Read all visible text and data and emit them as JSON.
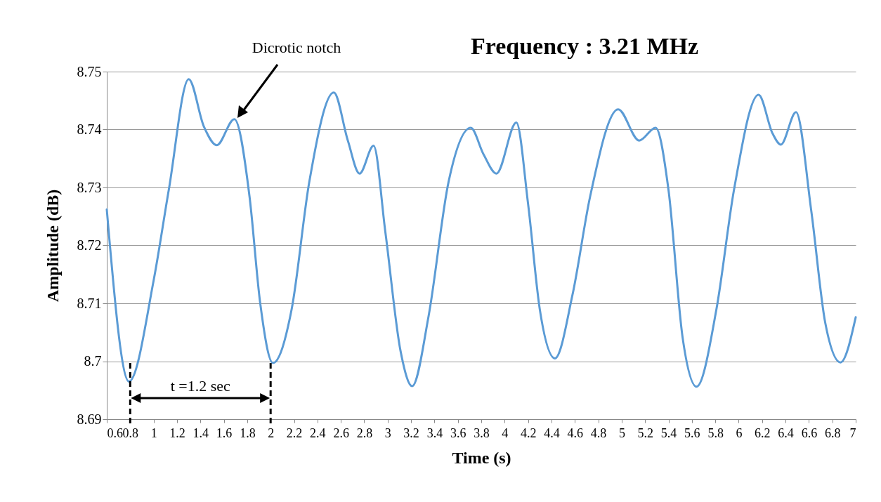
{
  "chart_data": {
    "type": "line",
    "title": "Frequency : 3.21 MHz",
    "xlabel": "Time (s)",
    "ylabel": "Amplitude (dB)",
    "x": [
      0.6,
      0.79,
      1.0,
      1.13,
      1.3,
      1.43,
      1.54,
      1.69,
      1.82,
      1.91,
      2.02,
      2.18,
      2.33,
      2.54,
      2.66,
      2.76,
      2.88,
      2.98,
      3.11,
      3.21,
      3.35,
      3.52,
      3.71,
      3.82,
      3.93,
      4.1,
      4.2,
      4.3,
      4.43,
      4.58,
      4.73,
      4.97,
      5.15,
      5.29,
      5.4,
      5.52,
      5.64,
      5.81,
      5.96,
      6.17,
      6.29,
      6.36,
      6.49,
      6.62,
      6.74,
      6.87,
      7.0
    ],
    "series": [
      {
        "color": "#5b9bd5",
        "values": [
          8.7262,
          8.6965,
          8.7139,
          8.7296,
          8.7487,
          8.7405,
          8.7373,
          8.7418,
          8.7284,
          8.7102,
          8.6997,
          8.709,
          8.7309,
          8.7464,
          8.7381,
          8.7324,
          8.7372,
          8.7224,
          8.7018,
          8.6957,
          8.7078,
          8.7309,
          8.7403,
          8.7357,
          8.7324,
          8.7412,
          8.7272,
          8.709,
          8.7005,
          8.7115,
          8.7284,
          8.7435,
          8.7381,
          8.7403,
          8.7296,
          8.7042,
          8.6956,
          8.709,
          8.7296,
          8.746,
          8.7393,
          8.7374,
          8.743,
          8.726,
          8.7066,
          8.6998,
          8.7076
        ]
      }
    ],
    "xlim": [
      0.6,
      7
    ],
    "xticks": [
      0.6,
      0.8,
      1,
      1.2,
      1.4,
      1.6,
      1.8,
      2,
      2.2,
      2.4,
      2.6,
      2.8,
      3,
      3.2,
      3.4,
      3.6,
      3.8,
      4,
      4.2,
      4.4,
      4.6,
      4.8,
      5,
      5.2,
      5.4,
      5.6,
      5.8,
      6,
      6.2,
      6.4,
      6.6,
      6.8,
      7
    ],
    "ylim": [
      8.69,
      8.75
    ],
    "yticks": [
      8.69,
      8.7,
      8.71,
      8.72,
      8.73,
      8.74,
      8.75
    ],
    "grid": "y",
    "marker": "none",
    "line_style": "solid",
    "annotations": [
      "Dicrotic notch",
      "t =1.2 sec"
    ],
    "ref_lines": [
      {
        "axis": "x",
        "value": 0.8,
        "color": "#000000",
        "line_style": "dashed"
      },
      {
        "axis": "x",
        "value": 2,
        "color": "#000000",
        "line_style": "dashed"
      }
    ]
  }
}
